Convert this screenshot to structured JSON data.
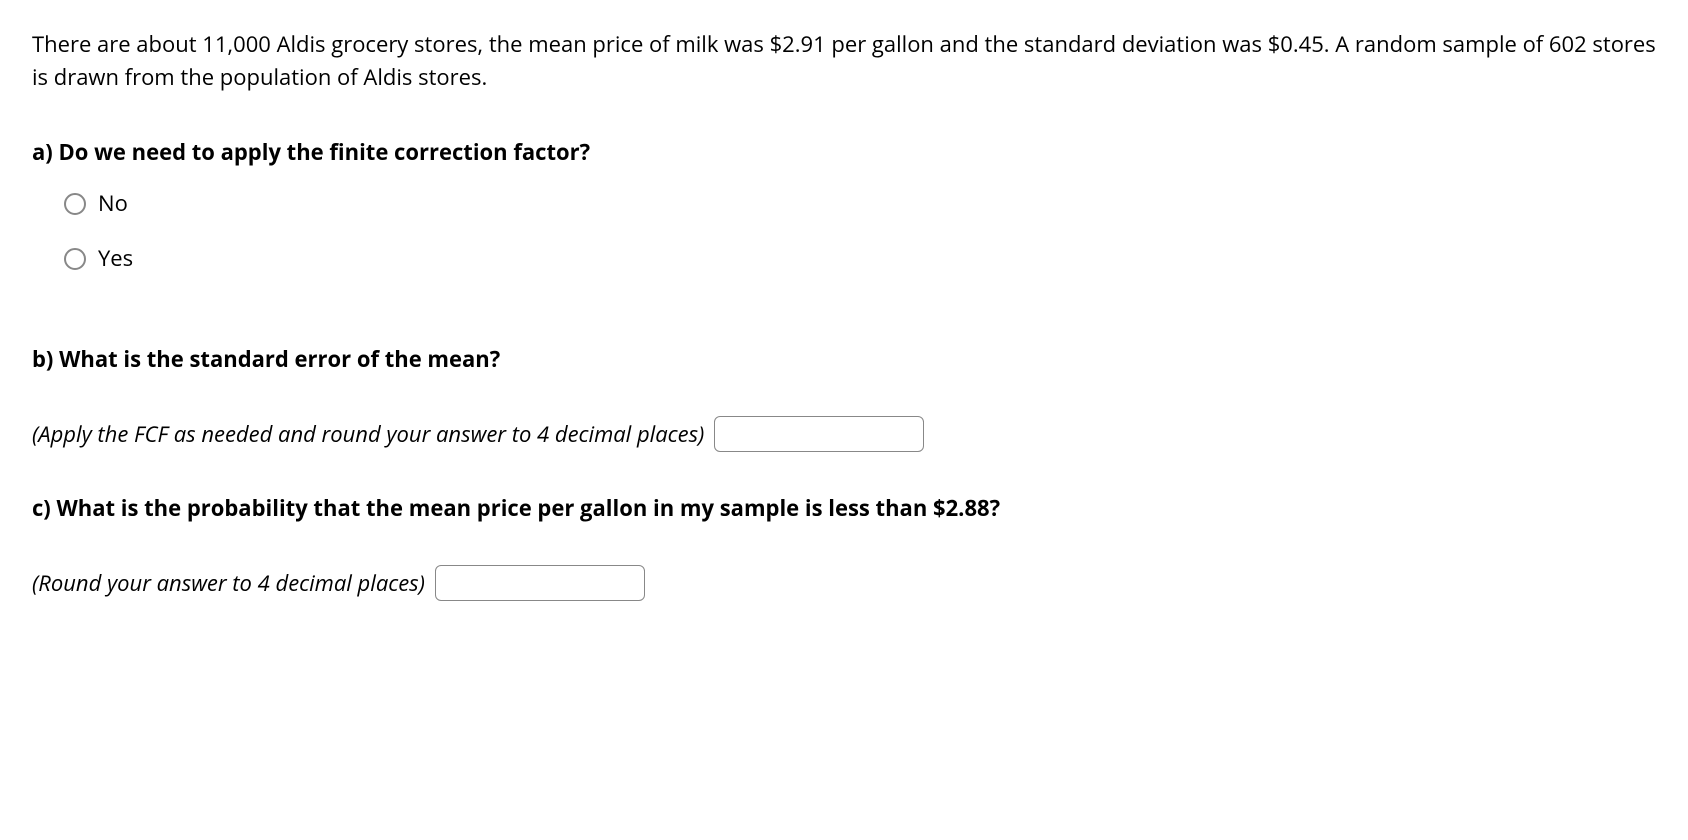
{
  "intro": "There are about 11,000 Aldis grocery stores, the mean price of milk was $2.91 per gallon and the standard deviation was $0.45. A random sample of 602 stores is drawn from the population of Aldis stores.",
  "question_a": {
    "prompt": "a) Do we need to apply the finite correction factor?",
    "options": [
      {
        "label": "No"
      },
      {
        "label": "Yes"
      }
    ]
  },
  "question_b": {
    "prompt": "b) What is the standard error of the mean?",
    "hint": "(Apply the FCF as needed and round your answer to 4 decimal places)"
  },
  "question_c": {
    "prompt": "c) What is the probability that the mean price per gallon in my sample is less than $2.88?",
    "hint": "(Round your answer to 4 decimal places)"
  }
}
